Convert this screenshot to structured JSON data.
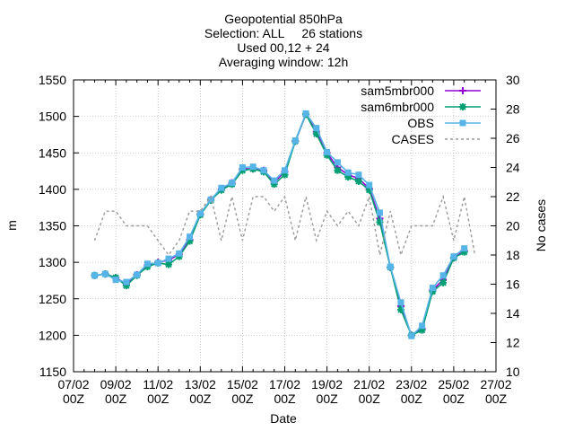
{
  "chart_data": {
    "type": "line",
    "title_lines": [
      "Geopotential 850hPa",
      "Selection: ALL     26 stations",
      "Used 00,12 + 24",
      "Averaging window: 12h"
    ],
    "xlabel": "Date",
    "ylabel": "m",
    "y2label": "No cases",
    "xlim": [
      0,
      40
    ],
    "ylim": [
      1150,
      1550
    ],
    "y2lim": [
      10,
      30
    ],
    "x_ticks": [
      {
        "x": 0,
        "line1": "07/02",
        "line2": "00Z"
      },
      {
        "x": 4,
        "line1": "09/02",
        "line2": "00Z"
      },
      {
        "x": 8,
        "line1": "11/02",
        "line2": "00Z"
      },
      {
        "x": 12,
        "line1": "13/02",
        "line2": "00Z"
      },
      {
        "x": 16,
        "line1": "15/02",
        "line2": "00Z"
      },
      {
        "x": 20,
        "line1": "17/02",
        "line2": "00Z"
      },
      {
        "x": 24,
        "line1": "19/02",
        "line2": "00Z"
      },
      {
        "x": 28,
        "line1": "21/02",
        "line2": "00Z"
      },
      {
        "x": 32,
        "line1": "23/02",
        "line2": "00Z"
      },
      {
        "x": 36,
        "line1": "25/02",
        "line2": "00Z"
      },
      {
        "x": 40,
        "line1": "27/02",
        "line2": "00Z"
      }
    ],
    "y_ticks": [
      1150,
      1200,
      1250,
      1300,
      1350,
      1400,
      1450,
      1500,
      1550
    ],
    "y2_ticks": [
      10,
      12,
      14,
      16,
      18,
      20,
      22,
      24,
      26,
      28,
      30
    ],
    "grid": true,
    "legend_position": "top-right",
    "x": [
      2,
      3,
      4,
      5,
      6,
      7,
      8,
      9,
      10,
      11,
      12,
      13,
      14,
      15,
      16,
      17,
      18,
      19,
      20,
      21,
      22,
      23,
      24,
      25,
      26,
      27,
      28,
      29,
      30,
      31,
      32,
      33,
      34,
      35,
      36,
      37,
      38
    ],
    "series": [
      {
        "name": "sam5mbr000",
        "color": "#9400d3",
        "marker": "plus",
        "values": [
          1282,
          1284,
          1279,
          1270,
          1283,
          1296,
          1300,
          1303,
          1311,
          1331,
          1366,
          1386,
          1400,
          1409,
          1428,
          1428,
          1426,
          1410,
          1424,
          1466,
          1503,
          1479,
          1450,
          1430,
          1420,
          1415,
          1401,
          1360,
          1293,
          1240,
          1200,
          1209,
          1262,
          1276,
          1306,
          1316,
          null
        ]
      },
      {
        "name": "sam6mbr000",
        "color": "#009e73",
        "marker": "star",
        "values": [
          1282,
          1284,
          1279,
          1268,
          1282,
          1294,
          1299,
          1297,
          1308,
          1329,
          1365,
          1385,
          1399,
          1407,
          1426,
          1428,
          1424,
          1407,
          1420,
          1466,
          1503,
          1476,
          1447,
          1426,
          1417,
          1411,
          1399,
          1355,
          1293,
          1235,
          1200,
          1207,
          1260,
          1272,
          1306,
          1314,
          null
        ]
      },
      {
        "name": "OBS",
        "color": "#56b4e9",
        "marker": "square",
        "values": [
          1282,
          1284,
          1276,
          1273,
          1283,
          1298,
          1299,
          1305,
          1312,
          1335,
          1367,
          1386,
          1402,
          1409,
          1430,
          1431,
          1426,
          1412,
          1426,
          1467,
          1504,
          1484,
          1451,
          1437,
          1423,
          1420,
          1406,
          1368,
          1294,
          1245,
          1199,
          1213,
          1265,
          1282,
          1308,
          1319,
          null
        ]
      },
      {
        "name": "CASES",
        "color": "#999999",
        "marker": "none",
        "axis": "y2",
        "x": [
          2,
          3,
          4,
          5,
          6,
          7,
          8,
          9,
          10,
          11,
          12,
          13,
          14,
          15,
          16,
          17,
          18,
          19,
          20,
          21,
          22,
          23,
          24,
          25,
          26,
          27,
          28,
          29,
          30,
          31,
          32,
          33,
          34,
          35,
          36,
          37,
          38
        ],
        "values": [
          19,
          21,
          21,
          20,
          20,
          20,
          19,
          18,
          19,
          21,
          21,
          22,
          19,
          22,
          19,
          22,
          22,
          21,
          22,
          19,
          22,
          19,
          21,
          20,
          21,
          20,
          22,
          18,
          21,
          18,
          20,
          20,
          20,
          22,
          19,
          22,
          18
        ]
      }
    ]
  }
}
